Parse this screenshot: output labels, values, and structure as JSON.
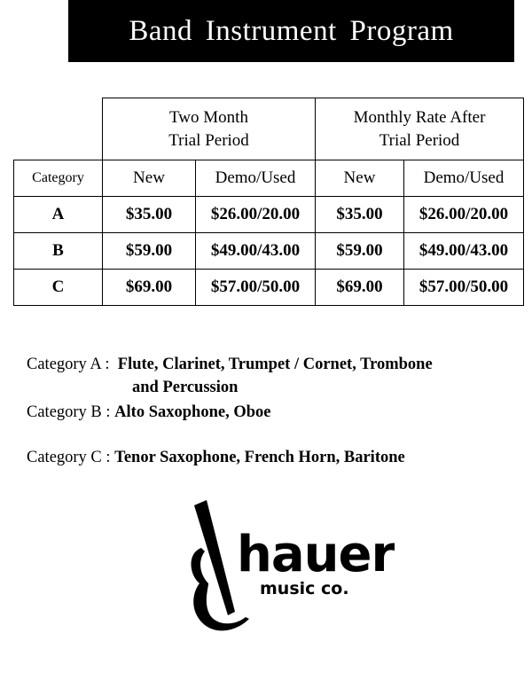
{
  "title": "Band  Instrument Program",
  "table": {
    "groups": [
      "Two Month\nTrial Period",
      "Monthly Rate After\nTrial Period"
    ],
    "group_lines": [
      [
        "Two Month",
        "Trial Period"
      ],
      [
        "Monthly Rate After",
        "Trial Period"
      ]
    ],
    "columns": [
      "Category",
      "New",
      "Demo/Used",
      "New",
      "Demo/Used"
    ],
    "rows": [
      [
        "A",
        "$35.00",
        "$26.00/20.00",
        "$35.00",
        "$26.00/20.00"
      ],
      [
        "B",
        "$59.00",
        "$49.00/43.00",
        "$59.00",
        "$49.00/43.00"
      ],
      [
        "C",
        "$69.00",
        "$57.00/50.00",
        "$69.00",
        "$57.00/50.00"
      ]
    ]
  },
  "categories": [
    {
      "label": "Category A :",
      "items": "Flute, Clarinet, Trumpet / Cornet, Trombone",
      "items2": "and Percussion"
    },
    {
      "label": "Category B :",
      "items": "Alto Saxophone, Oboe"
    },
    {
      "label": "Category C :",
      "items": "Tenor Saxophone, French Horn, Baritone"
    }
  ],
  "logo": {
    "text": "hauer",
    "subtext": "music co."
  }
}
